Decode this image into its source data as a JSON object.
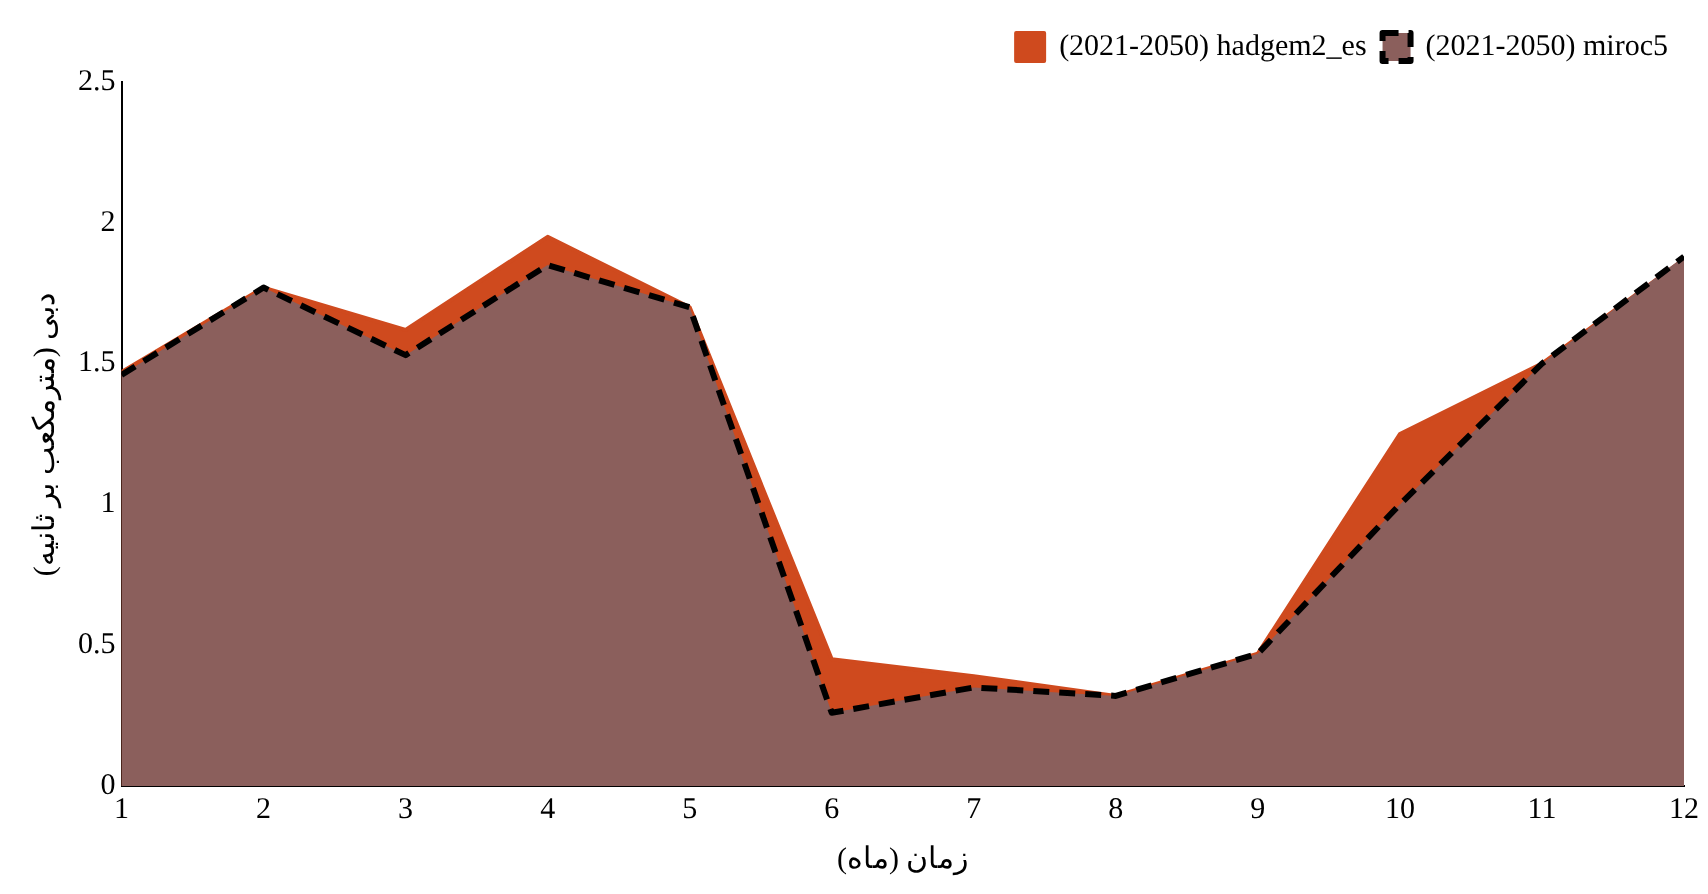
{
  "chart_data": {
    "type": "area",
    "xlabel": "زمان (ماه)",
    "ylabel": "دبی (مترمکعب بر ثانیه)",
    "x": [
      1,
      2,
      3,
      4,
      5,
      6,
      7,
      8,
      9,
      10,
      11,
      12
    ],
    "series": [
      {
        "name": "(2021-2050) hadgem2_es",
        "color": "#cf4a1e",
        "line_style": "solid",
        "values": [
          1.47,
          1.77,
          1.62,
          1.95,
          1.7,
          0.45,
          0.39,
          0.32,
          0.47,
          1.25,
          1.5,
          1.87
        ]
      },
      {
        "name": "(2021-2050) miroc5",
        "color": "#8b5f5c",
        "line_style": "dashed",
        "values": [
          1.46,
          1.77,
          1.53,
          1.85,
          1.7,
          0.26,
          0.35,
          0.32,
          0.47,
          1.0,
          1.5,
          1.88
        ]
      }
    ],
    "xlim": [
      1,
      12
    ],
    "xticks": [
      1,
      2,
      3,
      4,
      5,
      6,
      7,
      8,
      9,
      10,
      11,
      12
    ],
    "ylim": [
      0,
      2.5
    ],
    "yticks": [
      0,
      0.5,
      1,
      1.5,
      2,
      2.5
    ],
    "grid": false,
    "legend": "top right"
  }
}
